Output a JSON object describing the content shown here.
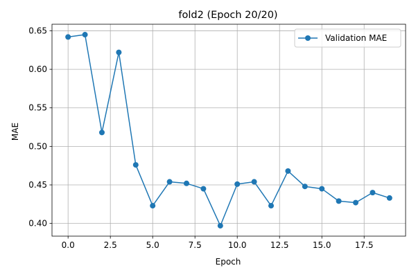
{
  "chart_data": {
    "type": "line",
    "title": "fold2 (Epoch 20/20)",
    "xlabel": "Epoch",
    "ylabel": "MAE",
    "xlim": [
      -0.95,
      19.95
    ],
    "ylim": [
      0.3835,
      0.6585
    ],
    "x_ticks": [
      0.0,
      2.5,
      5.0,
      7.5,
      10.0,
      12.5,
      15.0,
      17.5
    ],
    "x_tick_labels": [
      "0.0",
      "2.5",
      "5.0",
      "7.5",
      "10.0",
      "12.5",
      "15.0",
      "17.5"
    ],
    "y_ticks": [
      0.4,
      0.45,
      0.5,
      0.55,
      0.6,
      0.65
    ],
    "y_tick_labels": [
      "0.40",
      "0.45",
      "0.50",
      "0.55",
      "0.60",
      "0.65"
    ],
    "grid": true,
    "legend_position": "top-right",
    "series": [
      {
        "name": "Validation MAE",
        "color": "#1f77b4",
        "marker": "circle",
        "x": [
          0,
          1,
          2,
          3,
          4,
          5,
          6,
          7,
          8,
          9,
          10,
          11,
          12,
          13,
          14,
          15,
          16,
          17,
          18,
          19
        ],
        "values": [
          0.642,
          0.645,
          0.518,
          0.622,
          0.476,
          0.423,
          0.454,
          0.452,
          0.445,
          0.397,
          0.451,
          0.454,
          0.423,
          0.468,
          0.448,
          0.445,
          0.429,
          0.427,
          0.44,
          0.433
        ]
      }
    ]
  }
}
